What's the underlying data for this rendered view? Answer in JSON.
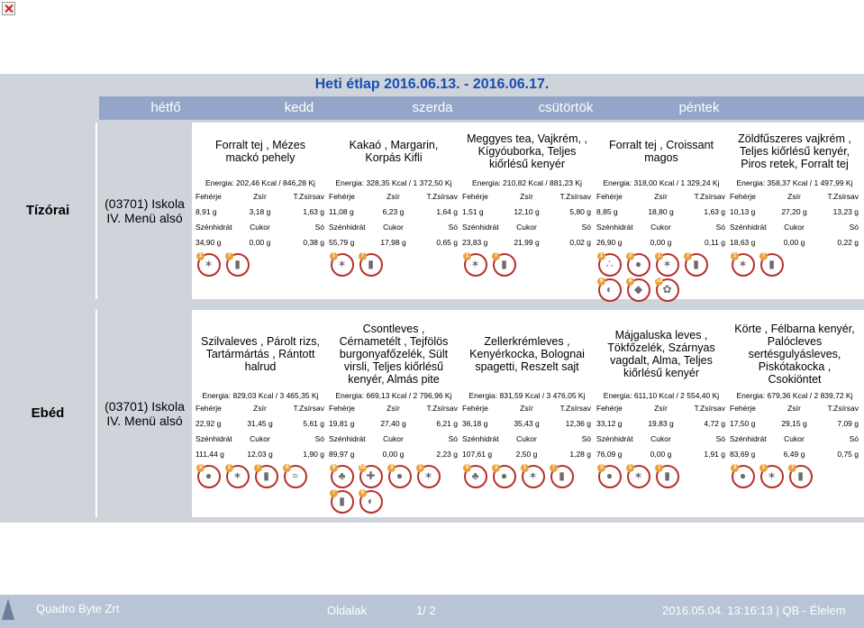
{
  "title": "Heti étlap 2016.06.13. - 2016.06.17.",
  "days": [
    "hétfő",
    "kedd",
    "szerda",
    "csütörtök",
    "péntek"
  ],
  "labels": {
    "row1": [
      "Fehérje",
      "Zsír",
      "T.Zsírsav"
    ],
    "row2": [
      "Szénhidrát",
      "Cukor",
      "Só"
    ]
  },
  "meals": [
    {
      "category": "Tízórai",
      "place": "(03701) Iskola IV. Menü alsó",
      "days": [
        {
          "dish": "Forralt tej , Mézes mackó pehely",
          "energy": "Energia: 202,46 Kcal / 846,28 Kj",
          "row1": [
            "8,91 g",
            "3,18 g",
            "1,63 g"
          ],
          "row2": [
            "34,90 g",
            "0,00 g",
            "0,38 g"
          ],
          "icons": [
            "gluten-icon",
            "milk-icon"
          ]
        },
        {
          "dish": "Kakaó , Margarin, Korpás Kifli",
          "energy": "Energia: 328,35 Kcal / 1 372,50 Kj",
          "row1": [
            "11,08 g",
            "6,23 g",
            "1,64 g"
          ],
          "row2": [
            "55,79 g",
            "17,98 g",
            "0,65 g"
          ],
          "icons": [
            "gluten-icon",
            "milk-icon"
          ]
        },
        {
          "dish": "Meggyes tea, Vajkrém, , Kígyóuborka, Teljes kiőrlésű kenyér",
          "energy": "Energia: 210,82 Kcal / 881,23 Kj",
          "row1": [
            "1,51 g",
            "12,10 g",
            "5,80 g"
          ],
          "row2": [
            "23,83 g",
            "21,99 g",
            "0,02 g"
          ],
          "icons": [
            "gluten-icon",
            "milk-icon"
          ]
        },
        {
          "dish": "Forralt tej , Croissant magos",
          "energy": "Energia: 318,00 Kcal / 1 329,24 Kj",
          "row1": [
            "8,85 g",
            "18,80 g",
            "1,63 g"
          ],
          "row2": [
            "26,90 g",
            "0,00 g",
            "0,11 g"
          ],
          "icons": [
            "sesame-icon",
            "egg-icon",
            "gluten-icon",
            "milk-icon",
            "soy-icon",
            "nut-icon",
            "lupin-icon"
          ]
        },
        {
          "dish": "Zöldfűszeres vajkrém , Teljes kiőrlésű kenyér, Piros retek, Forralt tej",
          "energy": "Energia: 358,37 Kcal / 1 497,99 Kj",
          "row1": [
            "10,13 g",
            "27,20 g",
            "13,23 g"
          ],
          "row2": [
            "18,63 g",
            "0,00 g",
            "0,22 g"
          ],
          "icons": [
            "gluten-icon",
            "milk-icon"
          ]
        }
      ]
    },
    {
      "category": "Ebéd",
      "place": "(03701) Iskola IV. Menü alsó",
      "days": [
        {
          "dish": "Szilvaleves , Párolt rizs, Tartármártás , Rántott halrud",
          "energy": "Energia: 829,03 Kcal / 3 465,35 Kj",
          "row1": [
            "22,92 g",
            "31,45 g",
            "5,61 g"
          ],
          "row2": [
            "111,44 g",
            "12,03 g",
            "1,90 g"
          ],
          "icons": [
            "egg-icon",
            "gluten-icon",
            "milk-icon",
            "fish-icon"
          ]
        },
        {
          "dish": "Csontleves , Cérnametélt , Tejfölös burgonyafőzelék, Sült virsli, Teljes kiőrlésű kenyér, Almás pite",
          "energy": "Energia: 669,13 Kcal / 2 796,96 Kj",
          "row1": [
            "19,81 g",
            "27,40 g",
            "6,21 g"
          ],
          "row2": [
            "89,97 g",
            "0,00 g",
            "2,23 g"
          ],
          "icons": [
            "celery-icon",
            "mustard-icon",
            "egg-icon",
            "gluten-icon",
            "milk-icon",
            "soy-icon"
          ]
        },
        {
          "dish": "Zellerkrémleves , Kenyérkocka, Bolognai spagetti, Reszelt sajt",
          "energy": "Energia: 831,59 Kcal / 3 476,05 Kj",
          "row1": [
            "36,18 g",
            "35,43 g",
            "12,36 g"
          ],
          "row2": [
            "107,61 g",
            "2,50 g",
            "1,28 g"
          ],
          "icons": [
            "celery-icon",
            "egg-icon",
            "gluten-icon",
            "milk-icon"
          ]
        },
        {
          "dish": "Májgaluska leves , Tökfőzelék, Szárnyas vagdalt, Alma, Teljes kiőrlésű kenyér",
          "energy": "Energia: 611,10 Kcal / 2 554,40 Kj",
          "row1": [
            "33,12 g",
            "19,83 g",
            "4,72 g"
          ],
          "row2": [
            "76,09 g",
            "0,00 g",
            "1,91 g"
          ],
          "icons": [
            "egg-icon",
            "gluten-icon",
            "milk-icon"
          ]
        },
        {
          "dish": "Körte , Félbarna kenyér, Palócleves sertésgulyásleves, Piskótakocka , Csokiöntet",
          "energy": "Energia: 679,36 Kcal / 2 839,72 Kj",
          "row1": [
            "17,50 g",
            "29,15 g",
            "7,09 g"
          ],
          "row2": [
            "83,69 g",
            "6,49 g",
            "0,75 g"
          ],
          "icons": [
            "egg-icon",
            "gluten-icon",
            "milk-icon"
          ]
        }
      ]
    }
  ],
  "footer": {
    "company": "Quadro Byte Zrt",
    "page_label": "Oldalak",
    "page_number": "1/ 2",
    "timestamp": "2016.05.04. 13:16:13 | QB - Élelem"
  }
}
